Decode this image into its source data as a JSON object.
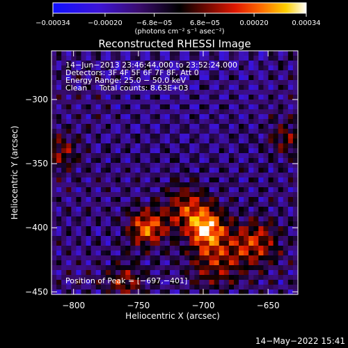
{
  "chart_data": {
    "type": "heatmap",
    "title": "Reconstructed RHESSI Image",
    "xlabel": "Heliocentric X (arcsec)",
    "ylabel": "Heliocentric Y (arcsec)",
    "xlim": [
      -817,
      -627
    ],
    "ylim": [
      -452,
      -262
    ],
    "x_ticks": [
      -800,
      -750,
      -700,
      -650
    ],
    "y_ticks": [
      -450,
      -400,
      -350,
      -300
    ],
    "x_tick_labels": [
      "−800",
      "−750",
      "−700",
      "−650"
    ],
    "y_tick_labels": [
      "−450",
      "−400",
      "−350",
      "−300"
    ],
    "colorbar": {
      "range": [
        -0.00034,
        0.00034
      ],
      "tick_values": [
        -0.00034,
        -0.0002,
        -6.8e-05,
        6.8e-05,
        0.0002,
        0.00034
      ],
      "tick_labels": [
        "−0.00034",
        "−0.00020",
        "−6.8e−05",
        "6.8e−05",
        "0.00020",
        "0.00034"
      ],
      "unit_label": "(photons cm⁻² s⁻¹ asec⁻²)"
    },
    "annotations": [
      "14−Jun−2013 23:46:44.000 to 23:52:24.000",
      "Detectors: 3F 4F 5F 6F 7F 8F, Att 0",
      "Energy Range: 25.0 − 50.0 keV",
      "Clean     Total counts: 8.63E+03"
    ],
    "peak_label": "Position of Peak = [−697,−401]",
    "peak_position": [
      -697,
      -401
    ],
    "sources": [
      {
        "x": -743,
        "y": -400,
        "value": 0.0003,
        "sigma": 10
      },
      {
        "x": -697,
        "y": -401,
        "value": 0.00034,
        "sigma": 10
      },
      {
        "x": -712,
        "y": -385,
        "value": 0.00022,
        "sigma": 12
      },
      {
        "x": -660,
        "y": -412,
        "value": 0.00024,
        "sigma": 12
      },
      {
        "x": -690,
        "y": -425,
        "value": 0.0002,
        "sigma": 14
      },
      {
        "x": -760,
        "y": -442,
        "value": 0.00018,
        "sigma": 10
      },
      {
        "x": -810,
        "y": -340,
        "value": 0.00016,
        "sigma": 10
      },
      {
        "x": -635,
        "y": -330,
        "value": 0.00014,
        "sigma": 10
      }
    ],
    "colormap": "rainbow-hot"
  },
  "timestamp": "14−May−2022 15:41"
}
